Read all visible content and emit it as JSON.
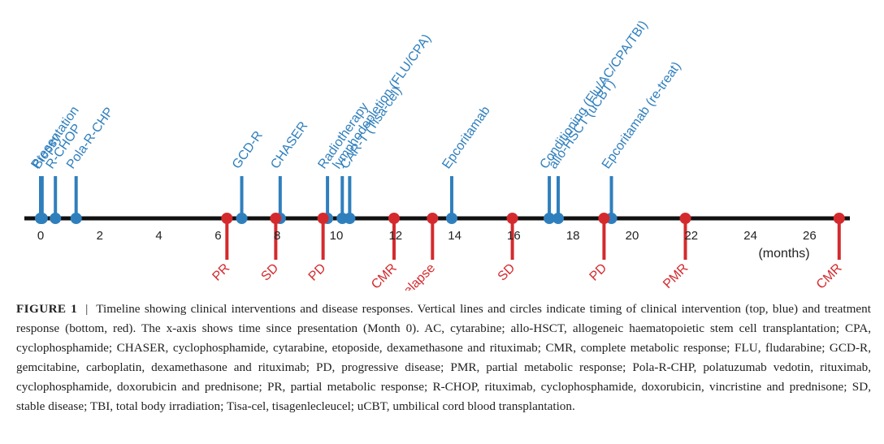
{
  "chart_data": {
    "type": "timeline",
    "xlabel": "(months)",
    "xlim": [
      0,
      27
    ],
    "ticks": [
      0,
      2,
      4,
      6,
      8,
      10,
      12,
      14,
      16,
      18,
      20,
      22,
      24,
      26
    ],
    "interventions": [
      {
        "label": "Presentation",
        "t": 0.0
      },
      {
        "label": "Biopsy",
        "t": 0.05
      },
      {
        "label": "R-CHOP",
        "t": 0.5
      },
      {
        "label": "Pola-R-CHP",
        "t": 1.2
      },
      {
        "label": "GCD-R",
        "t": 6.8
      },
      {
        "label": "CHASER",
        "t": 8.1
      },
      {
        "label": "Radiotherapy",
        "t": 9.7
      },
      {
        "label": "lymphodepletion (FLU/CPA)",
        "t": 10.2
      },
      {
        "label": "CAR-T (Tisa-cel)",
        "t": 10.45
      },
      {
        "label": "Epcoritamab",
        "t": 13.9
      },
      {
        "label": "Conditioning (Flu/AC/CPA/TBI)",
        "t": 17.2
      },
      {
        "label": "allo-HSCT (uCBT)",
        "t": 17.5
      },
      {
        "label": "Epcoritamab (re-treat)",
        "t": 19.3
      }
    ],
    "responses": [
      {
        "label": "PR",
        "t": 6.3
      },
      {
        "label": "SD",
        "t": 7.95
      },
      {
        "label": "PD",
        "t": 9.55
      },
      {
        "label": "CMR",
        "t": 11.95
      },
      {
        "label": "Relapse",
        "t": 13.25
      },
      {
        "label": "SD",
        "t": 15.95
      },
      {
        "label": "PD",
        "t": 19.05
      },
      {
        "label": "PMR",
        "t": 21.8
      },
      {
        "label": "CMR",
        "t": 27.0
      }
    ],
    "colors": {
      "intervention": "#2f7fbd",
      "response": "#d42a2e",
      "axis": "#111111"
    }
  },
  "caption": {
    "label": "FIGURE 1",
    "separator": "|",
    "text": "Timeline showing clinical interventions and disease responses. Vertical lines and circles indicate timing of clinical intervention (top, blue) and treatment response (bottom, red). The x-axis shows time since presentation (Month 0). AC, cytarabine; allo-HSCT, allogeneic haematopoietic stem cell transplantation; CPA, cyclophosphamide; CHASER, cyclophosphamide, cytarabine, etoposide, dexamethasone and rituximab; CMR, complete metabolic response; FLU, fludarabine; GCD-R, gemcitabine, carboplatin, dexamethasone and rituximab; PD, progressive disease; PMR, partial metabolic response; Pola-R-CHP, polatuzumab vedotin, rituximab, cyclophosphamide, doxorubicin and prednisone; PR, partial metabolic response; R-CHOP, rituximab, cyclophosphamide, doxorubicin, vincristine and prednisone; SD, stable disease; TBI, total body irradiation; Tisa-cel, tisagenlecleucel; uCBT, umbilical cord blood transplantation."
  }
}
